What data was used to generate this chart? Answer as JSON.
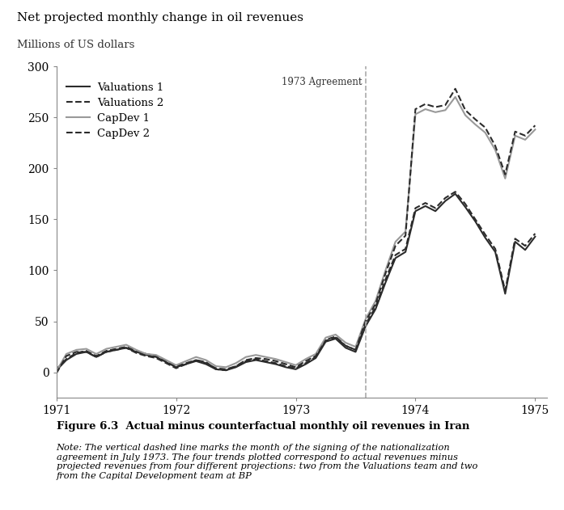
{
  "title": "Net projected monthly change in oil revenues",
  "subtitle": "Millions of US dollars",
  "ylim": [
    -25,
    300
  ],
  "yticks": [
    0,
    50,
    100,
    150,
    200,
    250,
    300
  ],
  "vline_x": 1973.583,
  "vline_label": "1973 Agreement",
  "background_color": "#ffffff",
  "figure_caption": "Figure 6.3  Actual minus counterfactual monthly oil revenues in Iran",
  "figure_note": "Note: The vertical dashed line marks the month of the signing of the nationalization\nagreement in July 1973. The four trends plotted correspond to actual revenues minus\nprojected revenues from four different projections: two from the Valuations team and two\nfrom the Capital Development team at BP",
  "legend_entries": [
    "Valuations 1",
    "Valuations 2",
    "CapDev 1",
    "CapDev 2"
  ],
  "months": [
    1971.0,
    1971.083,
    1971.167,
    1971.25,
    1971.333,
    1971.417,
    1971.5,
    1971.583,
    1971.667,
    1971.75,
    1971.833,
    1971.917,
    1972.0,
    1972.083,
    1972.167,
    1972.25,
    1972.333,
    1972.417,
    1972.5,
    1972.583,
    1972.667,
    1972.75,
    1972.833,
    1972.917,
    1973.0,
    1973.083,
    1973.167,
    1973.25,
    1973.333,
    1973.417,
    1973.5,
    1973.583,
    1973.667,
    1973.75,
    1973.833,
    1973.917,
    1974.0,
    1974.083,
    1974.167,
    1974.25,
    1974.333,
    1974.417,
    1974.5,
    1974.583,
    1974.667,
    1974.75,
    1974.833,
    1974.917,
    1975.0
  ],
  "val1": [
    2,
    12,
    18,
    20,
    15,
    20,
    22,
    24,
    20,
    17,
    15,
    10,
    5,
    8,
    11,
    8,
    3,
    2,
    5,
    10,
    12,
    10,
    8,
    5,
    3,
    8,
    14,
    30,
    33,
    24,
    20,
    45,
    62,
    88,
    112,
    118,
    158,
    163,
    158,
    168,
    175,
    162,
    148,
    132,
    118,
    77,
    128,
    120,
    133
  ],
  "val2": [
    3,
    13,
    19,
    21,
    16,
    21,
    23,
    25,
    21,
    18,
    16,
    11,
    6,
    9,
    12,
    9,
    4,
    3,
    6,
    11,
    13,
    11,
    9,
    6,
    4,
    9,
    15,
    32,
    35,
    26,
    22,
    47,
    64,
    91,
    115,
    121,
    161,
    166,
    161,
    171,
    177,
    165,
    150,
    135,
    121,
    80,
    131,
    124,
    136
  ],
  "capdev1": [
    1,
    18,
    22,
    23,
    18,
    23,
    25,
    27,
    22,
    18,
    17,
    12,
    7,
    11,
    15,
    12,
    6,
    5,
    9,
    15,
    17,
    15,
    13,
    10,
    7,
    13,
    18,
    34,
    37,
    29,
    25,
    52,
    70,
    100,
    128,
    138,
    253,
    258,
    255,
    257,
    270,
    252,
    243,
    235,
    218,
    190,
    232,
    228,
    238
  ],
  "capdev2": [
    -1,
    16,
    20,
    20,
    15,
    20,
    22,
    24,
    19,
    16,
    14,
    9,
    4,
    8,
    12,
    10,
    3,
    2,
    6,
    12,
    14,
    13,
    11,
    8,
    5,
    11,
    16,
    31,
    34,
    26,
    22,
    50,
    67,
    97,
    124,
    134,
    258,
    263,
    260,
    262,
    278,
    257,
    248,
    240,
    222,
    194,
    236,
    232,
    242
  ]
}
